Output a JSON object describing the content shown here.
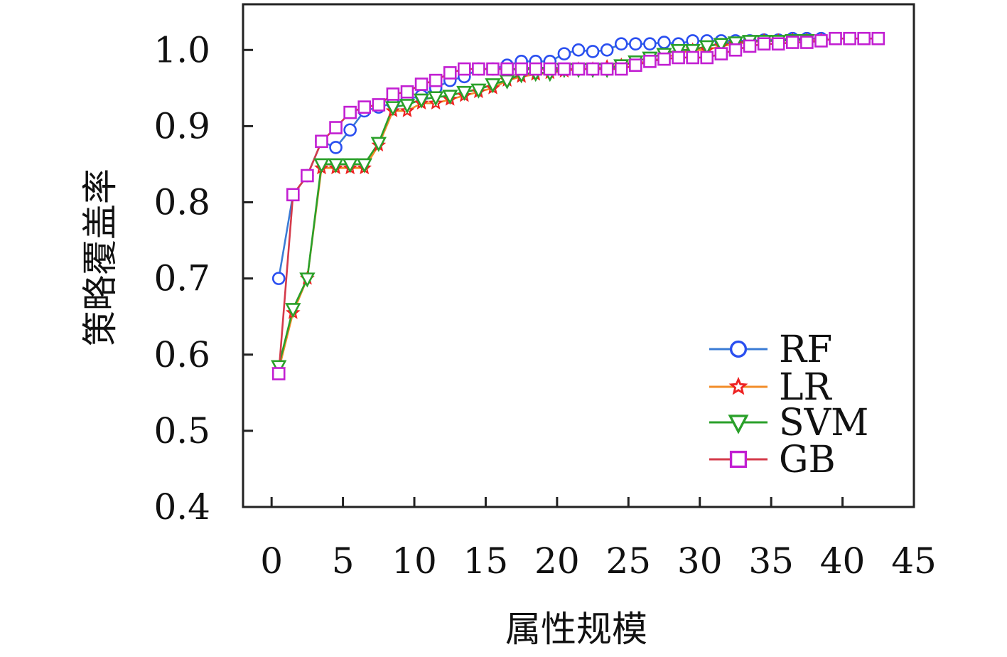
{
  "chart_data": {
    "type": "line",
    "title": "",
    "xlabel": "属性规模",
    "ylabel": "策略覆盖率",
    "xlim": [
      -2,
      45
    ],
    "ylim": [
      0.4,
      1.06
    ],
    "xticks": [
      0,
      5,
      10,
      15,
      20,
      25,
      30,
      35,
      40,
      45
    ],
    "xtick_labels": [
      "0",
      "5",
      "10",
      "15",
      "20",
      "25",
      "30",
      "35",
      "40",
      "45"
    ],
    "yticks": [
      0.4,
      0.5,
      0.6,
      0.7,
      0.8,
      0.9,
      1.0
    ],
    "ytick_labels": [
      "0.4",
      "0.5",
      "0.6",
      "0.7",
      "0.8",
      "0.9",
      "1.0"
    ],
    "grid": false,
    "legend_position": "bottom-right",
    "series": [
      {
        "name": "RF",
        "color": "#2a4ff0",
        "line_color": "#3a7bd5",
        "marker": "circle",
        "x": [
          0.5,
          1.5,
          2.5,
          3.5,
          4.5,
          5.5,
          6.5,
          7.5,
          8.5,
          9.5,
          10.5,
          11.5,
          12.5,
          13.5,
          14.5,
          15.5,
          16.5,
          17.5,
          18.5,
          19.5,
          20.5,
          21.5,
          22.5,
          23.5,
          24.5,
          25.5,
          26.5,
          27.5,
          28.5,
          29.5,
          30.5,
          31.5,
          32.5,
          33.5,
          34.5,
          35.5,
          36.5,
          37.5,
          38.5
        ],
        "y": [
          0.7,
          0.81,
          0.835,
          0.88,
          0.872,
          0.895,
          0.92,
          0.925,
          0.93,
          0.935,
          0.94,
          0.95,
          0.96,
          0.965,
          0.975,
          0.975,
          0.98,
          0.985,
          0.985,
          0.985,
          0.995,
          1.0,
          0.998,
          1.0,
          1.008,
          1.008,
          1.008,
          1.01,
          1.008,
          1.012,
          1.012,
          1.012,
          1.012,
          1.012,
          1.013,
          1.013,
          1.015,
          1.015,
          1.015
        ]
      },
      {
        "name": "LR",
        "color": "#ee2222",
        "line_color": "#f28c28",
        "marker": "star",
        "x": [
          0.5,
          1.5,
          2.5,
          3.5,
          4.5,
          5.5,
          6.5,
          7.5,
          8.5,
          9.5,
          10.5,
          11.5,
          12.5,
          13.5,
          14.5,
          15.5,
          16.5,
          17.5,
          18.5,
          19.5,
          20.5,
          21.5,
          22.5,
          23.5,
          24.5,
          25.5,
          26.5,
          27.5,
          28.5,
          29.5,
          30.5,
          31.5,
          32.5,
          33.5,
          34.5,
          35.5,
          36.5,
          37.5,
          38.5
        ],
        "y": [
          0.58,
          0.655,
          0.7,
          0.845,
          0.845,
          0.845,
          0.845,
          0.875,
          0.92,
          0.92,
          0.93,
          0.93,
          0.935,
          0.94,
          0.945,
          0.95,
          0.96,
          0.965,
          0.968,
          0.97,
          0.972,
          0.975,
          0.975,
          0.978,
          0.98,
          0.982,
          0.985,
          0.99,
          0.995,
          1.0,
          1.0,
          1.005,
          1.008,
          1.01,
          1.012,
          1.012,
          1.013,
          1.013,
          1.013
        ]
      },
      {
        "name": "SVM",
        "color": "#2aa02a",
        "line_color": "#2aa02a",
        "marker": "triangle-down",
        "x": [
          0.5,
          1.5,
          2.5,
          3.5,
          4.5,
          5.5,
          6.5,
          7.5,
          8.5,
          9.5,
          10.5,
          11.5,
          12.5,
          13.5,
          14.5,
          15.5,
          16.5,
          17.5,
          18.5,
          19.5,
          20.5,
          21.5,
          22.5,
          23.5,
          24.5,
          25.5,
          26.5,
          27.5,
          28.5,
          29.5,
          30.5,
          31.5,
          32.5,
          33.5,
          34.5,
          35.5,
          36.5,
          37.5
        ],
        "y": [
          0.585,
          0.66,
          0.7,
          0.85,
          0.85,
          0.85,
          0.85,
          0.878,
          0.925,
          0.928,
          0.935,
          0.938,
          0.94,
          0.945,
          0.948,
          0.955,
          0.96,
          0.968,
          0.97,
          0.97,
          0.975,
          0.975,
          0.975,
          0.975,
          0.98,
          0.985,
          0.99,
          0.995,
          1.0,
          1.0,
          1.005,
          1.008,
          1.01,
          1.012,
          1.012,
          1.012,
          1.013,
          1.013
        ]
      },
      {
        "name": "GB",
        "color": "#c21fd2",
        "line_color": "#d43a4a",
        "marker": "square",
        "x": [
          0.5,
          1.5,
          2.5,
          3.5,
          4.5,
          5.5,
          6.5,
          7.5,
          8.5,
          9.5,
          10.5,
          11.5,
          12.5,
          13.5,
          14.5,
          15.5,
          16.5,
          17.5,
          18.5,
          19.5,
          20.5,
          21.5,
          22.5,
          23.5,
          24.5,
          25.5,
          26.5,
          27.5,
          28.5,
          29.5,
          30.5,
          31.5,
          32.5,
          33.5,
          34.5,
          35.5,
          36.5,
          37.5,
          38.5,
          39.5,
          40.5,
          41.5,
          42.5
        ],
        "y": [
          0.575,
          0.81,
          0.835,
          0.88,
          0.898,
          0.918,
          0.925,
          0.928,
          0.942,
          0.945,
          0.955,
          0.96,
          0.97,
          0.975,
          0.975,
          0.975,
          0.975,
          0.975,
          0.975,
          0.975,
          0.975,
          0.975,
          0.975,
          0.975,
          0.975,
          0.98,
          0.985,
          0.988,
          0.99,
          0.99,
          0.99,
          0.995,
          1.0,
          1.005,
          1.008,
          1.008,
          1.01,
          1.01,
          1.012,
          1.015,
          1.015,
          1.015,
          1.015
        ]
      }
    ]
  }
}
